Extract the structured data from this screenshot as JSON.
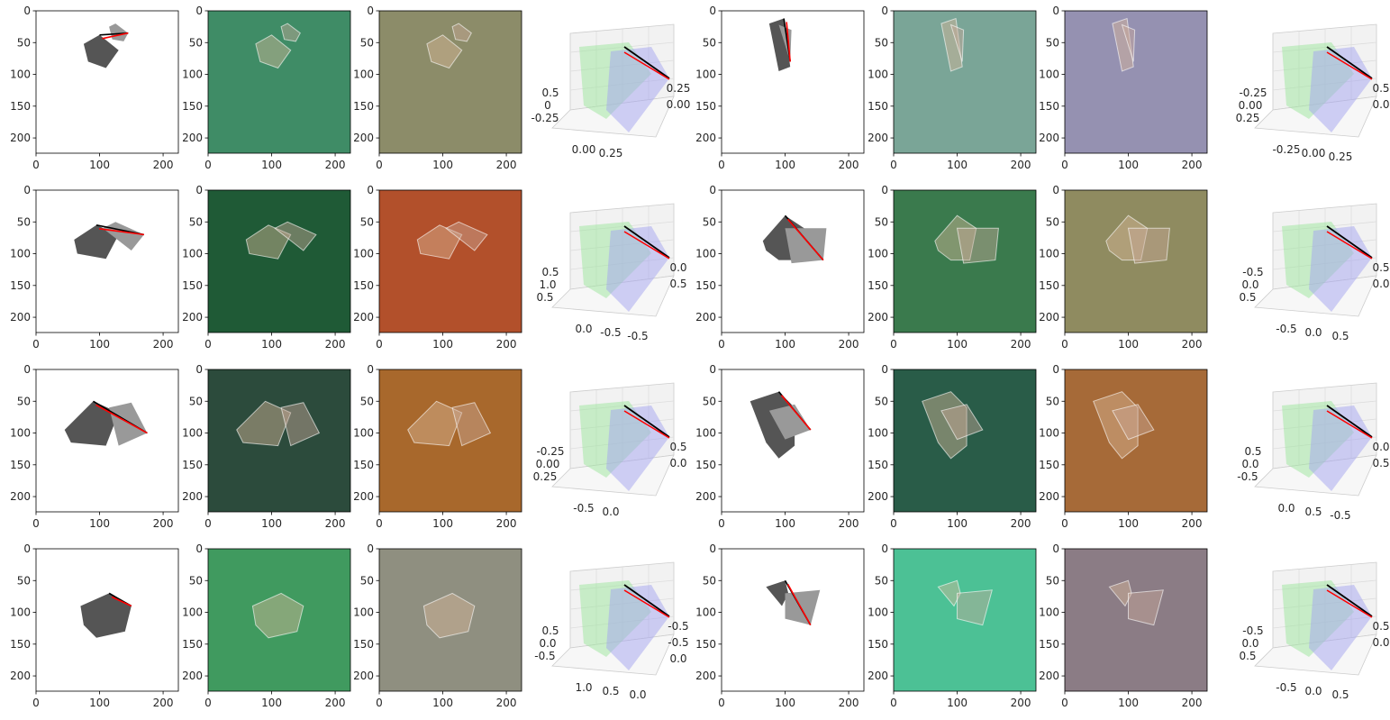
{
  "figure": {
    "rows": 4,
    "cols": 8
  },
  "image_axis": {
    "xticks": [
      "0",
      "100",
      "200"
    ],
    "yticks": [
      "0",
      "50",
      "100",
      "150",
      "200"
    ],
    "tick_values_x": [
      0,
      100,
      200
    ],
    "tick_values_y": [
      0,
      50,
      100,
      150,
      200
    ],
    "range": [
      0,
      224
    ]
  },
  "chart_data": [
    {
      "type": "image-grid",
      "row_backgrounds": [
        {
          "mask": "#ffffff",
          "feat1": "#3f8c66",
          "feat2": "#8c8c69",
          "feat3": "#7aa597",
          "feat4": "#9591b1"
        },
        {
          "mask": "#ffffff",
          "feat1": "#1f5a36",
          "feat2": "#b2502b",
          "feat3": "#3a7a4d",
          "feat4": "#8f8b60"
        },
        {
          "mask": "#ffffff",
          "feat1": "#2c4b3c",
          "feat2": "#a8682c",
          "feat3": "#295c48",
          "feat4": "#a66a38"
        },
        {
          "mask": "#ffffff",
          "feat1": "#409a5f",
          "feat2": "#8f8f80",
          "feat3": "#4cc195",
          "feat4": "#8b7c85"
        }
      ]
    },
    {
      "type": "scatter3d-panels",
      "panels": [
        {
          "row": 0,
          "side": "left",
          "ticks": [
            "0.5",
            "0",
            "-0.25",
            "0.00",
            "0.25",
            "0.25",
            "0.00"
          ]
        },
        {
          "row": 0,
          "side": "right",
          "ticks": [
            "-0.25",
            "0.00",
            "0.25",
            "-0.25",
            "0.00",
            "0.25",
            "0.5",
            "0.0"
          ]
        },
        {
          "row": 1,
          "side": "left",
          "ticks": [
            "0.5",
            "1.0",
            "0.5",
            "0.0",
            "-0.5",
            "-0.5",
            "0.0",
            "0.5"
          ]
        },
        {
          "row": 1,
          "side": "right",
          "ticks": [
            "-0.5",
            "0.0",
            "0.5",
            "-0.5",
            "0.0",
            "0.5",
            "0.5",
            "0.0"
          ]
        },
        {
          "row": 2,
          "side": "left",
          "ticks": [
            "-0.25",
            "0.00",
            "0.25",
            "-0.5",
            "0.0",
            "0.5",
            "0.0"
          ]
        },
        {
          "row": 2,
          "side": "right",
          "ticks": [
            "0.5",
            "0.0",
            "-0.5",
            "0.0",
            "0.5",
            "-0.5",
            "0.0",
            "0.5"
          ]
        },
        {
          "row": 3,
          "side": "left",
          "ticks": [
            "0.5",
            "0.0",
            "-0.5",
            "1.0",
            "0.5",
            "0.0",
            "-0.5",
            "-0.5",
            "0.0"
          ]
        },
        {
          "row": 3,
          "side": "right",
          "ticks": [
            "-0.5",
            "0.0",
            "0.5",
            "-0.5",
            "0.0",
            "0.5",
            "0.5",
            "0.0"
          ]
        }
      ],
      "plane_colors": {
        "green": "#9be69b",
        "blue": "#a3a3f0"
      },
      "line_colors": {
        "black": "#000000",
        "red": "#ff0000"
      }
    }
  ]
}
